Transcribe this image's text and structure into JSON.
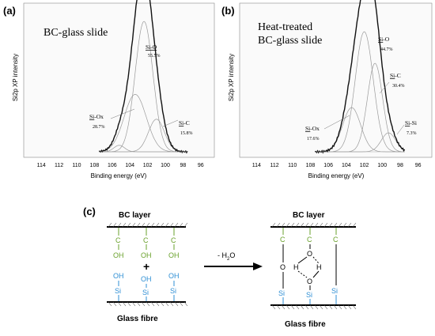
{
  "panels": [
    {
      "tag": "(a)",
      "title_lines": [
        "BC-glass slide"
      ],
      "ylabel": "Si2p XP intensity",
      "xlabel": "Binding energy (eV)",
      "xticks": [
        "114",
        "112",
        "110",
        "108",
        "106",
        "104",
        "102",
        "100",
        "98",
        "96"
      ],
      "peaks": [
        {
          "label": "Si-O",
          "pct": "55.5%",
          "center": 102.4,
          "amp": 1.0,
          "sigma": 1.0
        },
        {
          "label": "Si-Ox",
          "pct": "28.7%",
          "center": 103.4,
          "amp": 0.44,
          "sigma": 1.25
        },
        {
          "label": "Si-C",
          "pct": "15.8%",
          "center": 101.0,
          "amp": 0.25,
          "sigma": 0.9
        },
        {
          "label": "",
          "pct": "",
          "center": 105.2,
          "amp": 0.05,
          "sigma": 0.6
        }
      ]
    },
    {
      "tag": "(b)",
      "title_lines": [
        "Heat-treated",
        "BC-glass slide"
      ],
      "ylabel": "Si2p XP intensity",
      "xlabel": "Binding energy (eV)",
      "xticks": [
        "114",
        "112",
        "110",
        "108",
        "106",
        "104",
        "102",
        "100",
        "98",
        "96"
      ],
      "peaks": [
        {
          "label": "Si-O",
          "pct": "44.7%",
          "center": 102.0,
          "amp": 0.76,
          "sigma": 1.0
        },
        {
          "label": "Si-C",
          "pct": "30.4%",
          "center": 100.8,
          "amp": 0.56,
          "sigma": 0.85
        },
        {
          "label": "Si-Ox",
          "pct": "17.6%",
          "center": 103.4,
          "amp": 0.28,
          "sigma": 1.0
        },
        {
          "label": "Si-Si",
          "pct": "7.3%",
          "center": 99.3,
          "amp": 0.12,
          "sigma": 0.8
        }
      ]
    }
  ],
  "scheme": {
    "tag": "(c)",
    "left_top": "BC layer",
    "left_bottom": "Glass fibre",
    "right_top": "BC layer",
    "right_bottom": "Glass fibre",
    "reaction": "- H",
    "reaction_sub": "2",
    "reaction_tail": "O",
    "plus": "+",
    "atom_c": "C",
    "atom_oh": "OH",
    "atom_si": "Si",
    "atom_o": "O",
    "atom_h": "H"
  },
  "colors": {
    "green": "#6aa12c",
    "blue": "#2f8fd4"
  }
}
